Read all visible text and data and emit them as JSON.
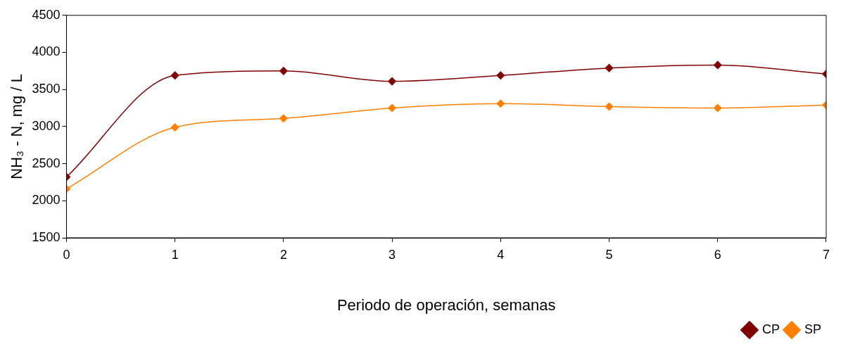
{
  "chart_data": {
    "type": "line",
    "xlabel": "Periodo de operación, semanas",
    "ylabel": "NH₃ - N, mg / L",
    "x": [
      0,
      1,
      2,
      3,
      4,
      5,
      6,
      7
    ],
    "xlim": [
      0,
      7
    ],
    "xticks": [
      0,
      1,
      2,
      3,
      4,
      5,
      6,
      7
    ],
    "ylim": [
      1500,
      4500
    ],
    "yticks": [
      1500,
      2000,
      2500,
      3000,
      3500,
      4000,
      4500
    ],
    "grid": false,
    "legend": "bottom right",
    "marker": "diamond",
    "line_style": "solid",
    "series": [
      {
        "name": "CP",
        "color": "#800000",
        "values": [
          2320,
          3690,
          3750,
          3610,
          3690,
          3790,
          3830,
          3710
        ]
      },
      {
        "name": "SP",
        "color": "#ff8000",
        "values": [
          2160,
          2990,
          3110,
          3250,
          3310,
          3270,
          3250,
          3290
        ]
      }
    ]
  }
}
